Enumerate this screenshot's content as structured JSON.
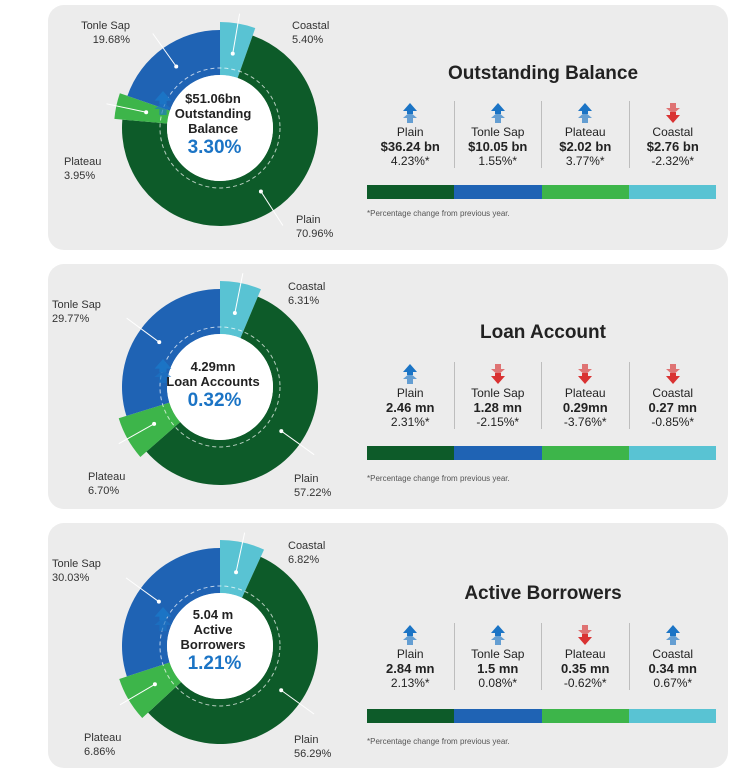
{
  "colors": {
    "plain": "#0d5b29",
    "tonle_sap": "#1f63b4",
    "plateau": "#3db54a",
    "coastal": "#59c3d3",
    "up": "#1b74c5",
    "down": "#d93232"
  },
  "chart_data": [
    {
      "type": "pie",
      "title": "Outstanding Balance",
      "center": {
        "value": "$51.06bn",
        "line1": "Outstanding",
        "line2": "Balance",
        "change": "3.30%",
        "direction": "up"
      },
      "slices": [
        {
          "name": "Coastal",
          "value": 5.4,
          "label": "5.40%"
        },
        {
          "name": "Plain",
          "value": 70.96,
          "label": "70.96%"
        },
        {
          "name": "Plateau",
          "value": 3.95,
          "label": "3.95%"
        },
        {
          "name": "Tonle Sap",
          "value": 19.68,
          "label": "19.68%"
        }
      ],
      "regions": [
        {
          "name": "Plain",
          "amount": "$36.24 bn",
          "change": "4.23%*",
          "direction": "up"
        },
        {
          "name": "Tonle Sap",
          "amount": "$10.05 bn",
          "change": "1.55%*",
          "direction": "up"
        },
        {
          "name": "Plateau",
          "amount": "$2.02 bn",
          "change": "3.77%*",
          "direction": "up"
        },
        {
          "name": "Coastal",
          "amount": "$2.76 bn",
          "change": "-2.32%*",
          "direction": "down"
        }
      ],
      "note": "*Percentage change from previous year."
    },
    {
      "type": "pie",
      "title": "Loan Account",
      "center": {
        "value": "4.29mn",
        "line1": "Loan Accounts",
        "line2": "",
        "change": "0.32%",
        "direction": "up"
      },
      "slices": [
        {
          "name": "Coastal",
          "value": 6.31,
          "label": "6.31%"
        },
        {
          "name": "Plain",
          "value": 57.22,
          "label": "57.22%"
        },
        {
          "name": "Plateau",
          "value": 6.7,
          "label": "6.70%"
        },
        {
          "name": "Tonle Sap",
          "value": 29.77,
          "label": "29.77%"
        }
      ],
      "regions": [
        {
          "name": "Plain",
          "amount": "2.46 mn",
          "change": "2.31%*",
          "direction": "up"
        },
        {
          "name": "Tonle Sap",
          "amount": "1.28 mn",
          "change": "-2.15%*",
          "direction": "down"
        },
        {
          "name": "Plateau",
          "amount": "0.29mn",
          "change": "-3.76%*",
          "direction": "down"
        },
        {
          "name": "Coastal",
          "amount": "0.27 mn",
          "change": "-0.85%*",
          "direction": "down"
        }
      ],
      "note": "*Percentage change from previous year."
    },
    {
      "type": "pie",
      "title": "Active Borrowers",
      "center": {
        "value": "5.04 m",
        "line1": "Active",
        "line2": "Borrowers",
        "change": "1.21%",
        "direction": "up"
      },
      "slices": [
        {
          "name": "Coastal",
          "value": 6.82,
          "label": "6.82%"
        },
        {
          "name": "Plain",
          "value": 56.29,
          "label": "56.29%"
        },
        {
          "name": "Plateau",
          "value": 6.86,
          "label": "6.86%"
        },
        {
          "name": "Tonle Sap",
          "value": 30.03,
          "label": "30.03%"
        }
      ],
      "regions": [
        {
          "name": "Plain",
          "amount": "2.84 mn",
          "change": "2.13%*",
          "direction": "up"
        },
        {
          "name": "Tonle Sap",
          "amount": "1.5 mn",
          "change": "0.08%*",
          "direction": "up"
        },
        {
          "name": "Plateau",
          "amount": "0.35 mn",
          "change": "-0.62%*",
          "direction": "down"
        },
        {
          "name": "Coastal",
          "amount": "0.34 mn",
          "change": "0.67%*",
          "direction": "up"
        }
      ],
      "note": "*Percentage change from previous year."
    }
  ]
}
